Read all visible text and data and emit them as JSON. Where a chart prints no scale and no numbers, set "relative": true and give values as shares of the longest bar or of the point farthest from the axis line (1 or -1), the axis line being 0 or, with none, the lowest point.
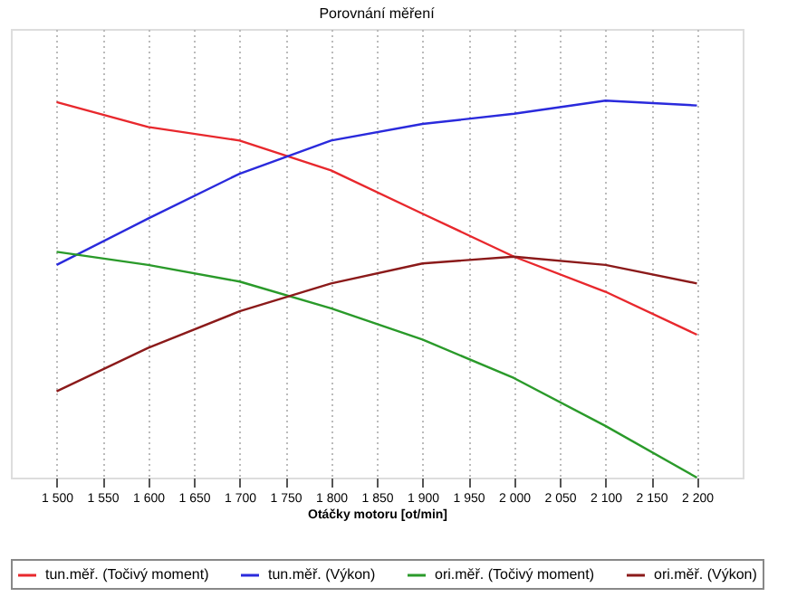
{
  "chart_data": {
    "type": "line",
    "title": "Porovnání měření",
    "xlabel": "Otáčky motoru [ot/min]",
    "relative": true,
    "x": [
      1500,
      1600,
      1700,
      1800,
      1900,
      2000,
      2100,
      2200
    ],
    "xlim": [
      1450,
      2250
    ],
    "xticks": [
      {
        "value": 1500,
        "label": "1 500"
      },
      {
        "value": 1550,
        "label": "1 550"
      },
      {
        "value": 1600,
        "label": "1 600"
      },
      {
        "value": 1650,
        "label": "1 650"
      },
      {
        "value": 1700,
        "label": "1 700"
      },
      {
        "value": 1750,
        "label": "1 750"
      },
      {
        "value": 1800,
        "label": "1 800"
      },
      {
        "value": 1850,
        "label": "1 850"
      },
      {
        "value": 1900,
        "label": "1 900"
      },
      {
        "value": 1950,
        "label": "1 950"
      },
      {
        "value": 2000,
        "label": "2 000"
      },
      {
        "value": 2050,
        "label": "2 050"
      },
      {
        "value": 2100,
        "label": "2 100"
      },
      {
        "value": 2150,
        "label": "2 150"
      },
      {
        "value": 2200,
        "label": "2 200"
      }
    ],
    "series": [
      {
        "name": "tun.měř. (Točivý moment)",
        "color": "#e8282d",
        "values": [
          0.996,
          0.93,
          0.894,
          0.815,
          0.7,
          0.586,
          0.493,
          0.379
        ]
      },
      {
        "name": "tun.měř. (Výkon)",
        "color": "#2a2adc",
        "values": [
          0.564,
          0.687,
          0.806,
          0.894,
          0.938,
          0.965,
          1.0,
          0.987
        ]
      },
      {
        "name": "ori.měř. (Točivý moment)",
        "color": "#2a9a2a",
        "values": [
          0.599,
          0.564,
          0.52,
          0.449,
          0.366,
          0.264,
          0.137,
          0.0
        ]
      },
      {
        "name": "ori.měř. (Výkon)",
        "color": "#8b1a1a",
        "values": [
          0.229,
          0.344,
          0.441,
          0.515,
          0.568,
          0.586,
          0.564,
          0.515
        ]
      }
    ],
    "grid": "x",
    "legend": "bottom",
    "marker": "none",
    "line_style": "solid"
  }
}
